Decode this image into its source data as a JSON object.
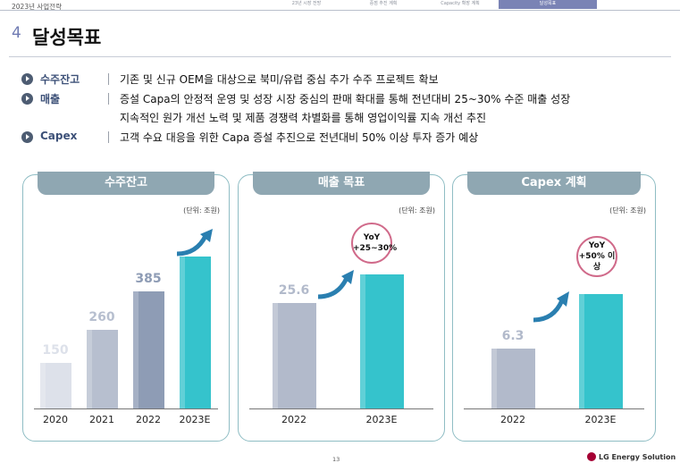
{
  "header": {
    "section_label": "2023년 사업전략",
    "nav_tabs": [
      "23년 시장 전망",
      "중점 추진 계획",
      "Capacity 확장 계획",
      "달성목표"
    ]
  },
  "title": {
    "number": "4",
    "text": "달성목표"
  },
  "bullets": [
    {
      "label": "수주잔고",
      "lines": [
        "기존 및 신규 OEM을 대상으로 북미/유럽 중심 추가 수주 프로젝트 확보"
      ]
    },
    {
      "label": "매출",
      "lines": [
        "증설 Capa의 안정적 운영 및 성장 시장 중심의 판매 확대를 통해 전년대비 25~30% 수준 매출 성장",
        "지속적인 원가 개선 노력 및 제품 경쟁력 차별화를 통해 영업이익률 지속 개선 추진"
      ]
    },
    {
      "label": "Capex",
      "lines": [
        "고객 수요 대응을 위한 Capa 증설 추진으로 전년대비 50% 이상 투자 증가 예상"
      ]
    }
  ],
  "chart_data": [
    {
      "type": "bar",
      "title": "수주잔고",
      "unit_note": "(단위: 조원)",
      "categories": [
        "2020",
        "2021",
        "2022",
        "2023E"
      ],
      "values": [
        150,
        260,
        385,
        null
      ],
      "value_labels": [
        "150",
        "260",
        "385",
        ""
      ],
      "bar_colors": [
        "#dde1ea",
        "#b7bfcf",
        "#8e9cb5",
        "#35c3cc"
      ],
      "label_colors": [
        "#dde1ea",
        "#b7bfcf",
        "#8e9cb5",
        ""
      ]
    },
    {
      "type": "bar",
      "title": "매출 목표",
      "unit_note": "(단위: 조원)",
      "categories": [
        "2022",
        "2023E"
      ],
      "values": [
        25.6,
        null
      ],
      "value_labels": [
        "25.6",
        ""
      ],
      "bar_colors": [
        "#b2bacb",
        "#35c3cc"
      ],
      "label_colors": [
        "#b2bacb",
        ""
      ],
      "badge": {
        "line1": "YoY",
        "line2": "+25~30%"
      }
    },
    {
      "type": "bar",
      "title": "Capex 계획",
      "unit_note": "(단위: 조원)",
      "categories": [
        "2022",
        "2023E"
      ],
      "values": [
        6.3,
        null
      ],
      "value_labels": [
        "6.3",
        ""
      ],
      "bar_colors": [
        "#b2bacb",
        "#35c3cc"
      ],
      "label_colors": [
        "#b2bacb",
        ""
      ],
      "badge": {
        "line1": "YoY",
        "line2": "+50% 이상"
      }
    }
  ],
  "footer": {
    "page_number": "13",
    "logo_text": "LG Energy Solution"
  },
  "colors": {
    "accent": "#6f7bb3",
    "panel_border": "#8fbdc4",
    "panel_header": "#8fa7b2",
    "badge_border": "#d06a8a",
    "arrow": "#2a7fb0"
  }
}
